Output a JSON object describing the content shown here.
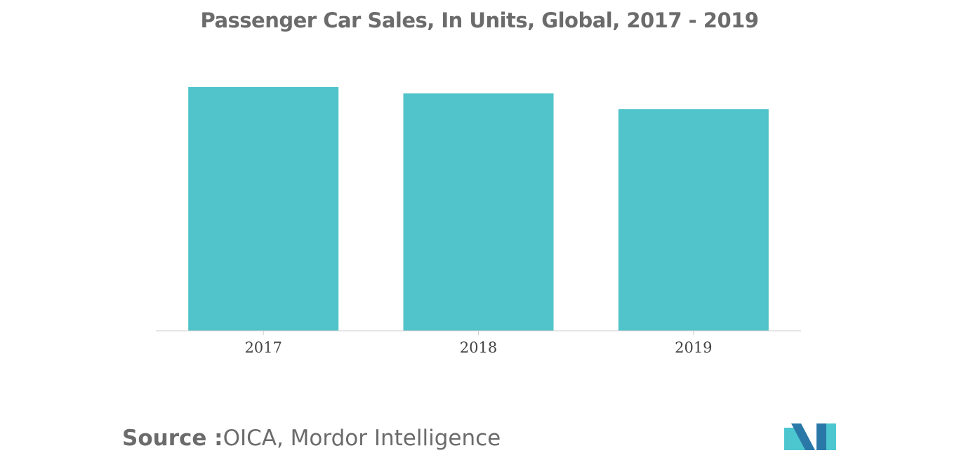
{
  "chart_data": {
    "type": "bar",
    "title": "Passenger Car Sales, In Units, Global, 2017 - 2019",
    "xlabel": "",
    "ylabel": "",
    "categories": [
      "2017",
      "2018",
      "2019"
    ],
    "values": [
      100,
      97.4,
      91.0
    ],
    "ylim": [
      0,
      100
    ],
    "grid": false,
    "legend": "none"
  },
  "colors": {
    "bar": "#51c3ca",
    "title": "#6b6b6b",
    "axis": "#cccccc",
    "logo_dark": "#2a78a8",
    "logo_light": "#4cc6cf"
  },
  "source": {
    "label": "Source :",
    "text": "OICA, Mordor Intelligence"
  },
  "logo": {
    "icon": "mordor-intelligence-logo-icon"
  }
}
